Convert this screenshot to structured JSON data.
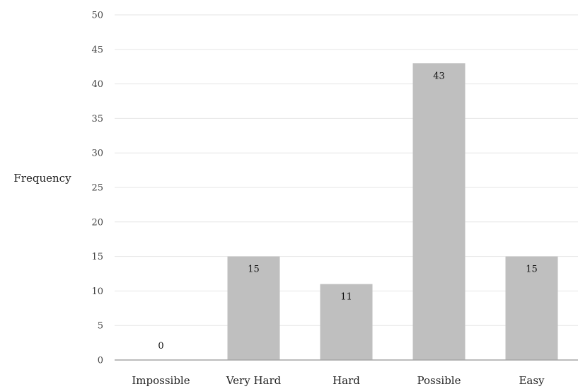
{
  "chart_data": {
    "type": "bar",
    "title": "",
    "xlabel": "",
    "ylabel": "Frequency",
    "categories": [
      "Impossible",
      "Very Hard",
      "Hard",
      "Possible",
      "Easy"
    ],
    "values": [
      0,
      15,
      11,
      43,
      15
    ],
    "ylim": [
      0,
      50
    ],
    "yticks": [
      0,
      5,
      10,
      15,
      20,
      25,
      30,
      35,
      40,
      45,
      50
    ],
    "grid": true,
    "legend": "none",
    "colors": {
      "bar": "#bfbfbf",
      "grid": "#e6e6e6",
      "axis": "#a6a6a6"
    }
  }
}
